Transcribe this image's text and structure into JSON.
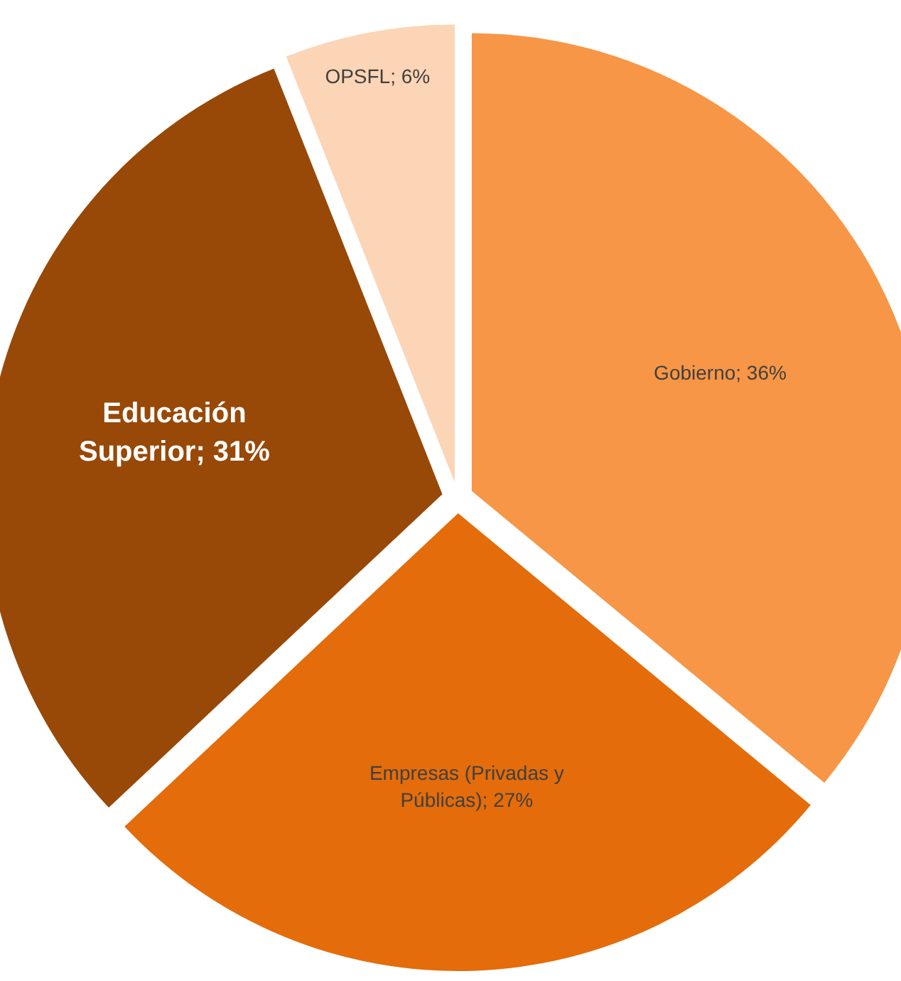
{
  "chart_data": {
    "type": "pie",
    "values": [
      36,
      27,
      31,
      6
    ],
    "colors": [
      "#f79646",
      "#e46c0a",
      "#984807",
      "#fbd5b5"
    ],
    "value_labels": [
      "Gobierno; 36%",
      "Empresas (Privadas y Públicas); 27%",
      "Educación Superior; 31%",
      "OPSFL; 6%"
    ]
  }
}
